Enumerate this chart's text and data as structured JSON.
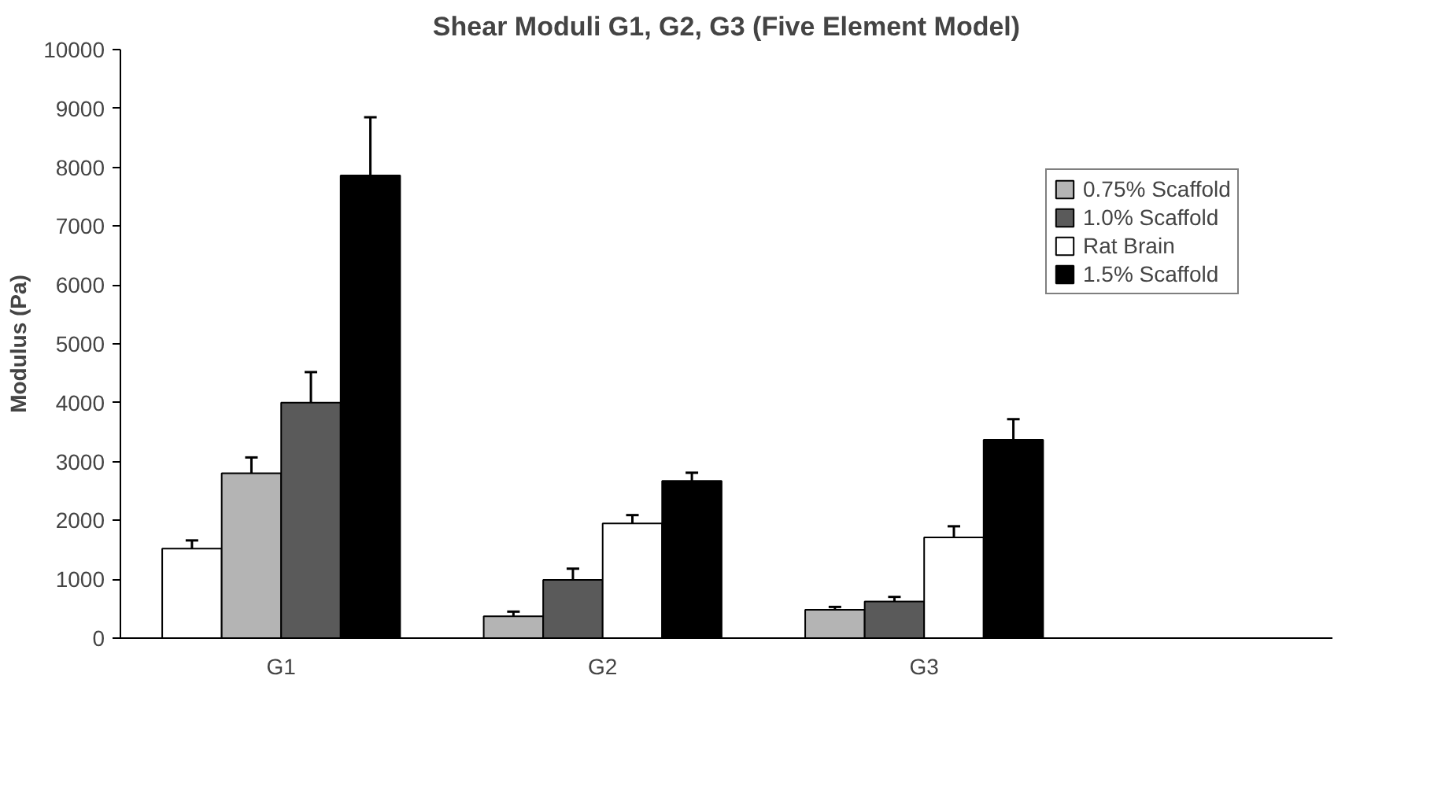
{
  "chart_data": {
    "type": "bar",
    "title": "Shear Moduli G1, G2, G3 (Five Element Model)",
    "ylabel": "Modulus (Pa)",
    "categories": [
      "G1",
      "G2",
      "G3"
    ],
    "ylim": [
      0,
      10000
    ],
    "yticks": [
      0,
      1000,
      2000,
      3000,
      4000,
      5000,
      6000,
      7000,
      8000,
      9000,
      10000
    ],
    "grid": false,
    "legend": "right",
    "series": [
      {
        "color": "#ffffff",
        "values": [
          1520,
          null,
          null
        ],
        "errors": [
          [
            1520,
            1660
          ],
          null,
          null
        ]
      },
      {
        "name": "0.75% Scaffold",
        "color": "#b4b4b4",
        "values": [
          2800,
          370,
          480
        ],
        "errors": [
          [
            2800,
            3070
          ],
          [
            370,
            450
          ],
          [
            480,
            530
          ]
        ]
      },
      {
        "name": "1.0% Scaffold",
        "color": "#5a5a5a",
        "values": [
          4000,
          990,
          620
        ],
        "errors": [
          [
            4000,
            4520
          ],
          [
            990,
            1180
          ],
          [
            620,
            700
          ]
        ]
      },
      {
        "name": "Rat Brain",
        "color": "#ffffff",
        "values": [
          null,
          1950,
          1710
        ],
        "errors": [
          null,
          [
            1950,
            2090
          ],
          [
            1710,
            1900
          ]
        ]
      },
      {
        "name": "1.5% Scaffold",
        "color": "#000000",
        "values": [
          7860,
          2670,
          3370
        ],
        "errors": [
          [
            7860,
            8850
          ],
          [
            2670,
            2810
          ],
          [
            3370,
            3720
          ]
        ]
      }
    ]
  }
}
